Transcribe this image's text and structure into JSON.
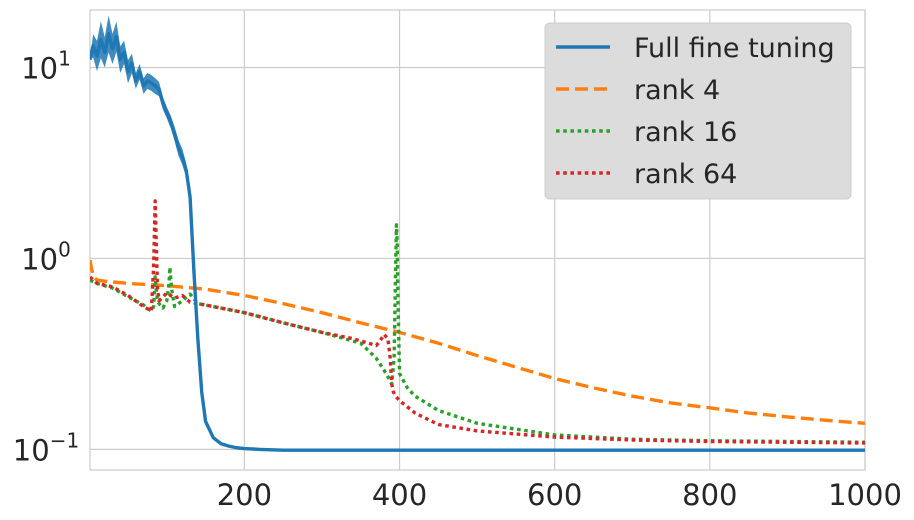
{
  "chart_data": {
    "type": "line",
    "title": "",
    "xlabel": "",
    "ylabel": "",
    "xlim": [
      1,
      1000
    ],
    "ylim": [
      0.078,
      20
    ],
    "yscale": "log",
    "grid": true,
    "legend_position": "top-right",
    "x_ticks": [
      {
        "value": 200,
        "label": "200"
      },
      {
        "value": 400,
        "label": "400"
      },
      {
        "value": 600,
        "label": "600"
      },
      {
        "value": 800,
        "label": "800"
      },
      {
        "value": 1000,
        "label": "1000"
      }
    ],
    "y_ticks": [
      {
        "value": 10,
        "base": "10",
        "exp": "1"
      },
      {
        "value": 1,
        "base": "10",
        "exp": "0"
      },
      {
        "value": 0.1,
        "base": "10",
        "exp": "−1"
      }
    ],
    "series": [
      {
        "name": "Full fine tuning",
        "color": "#1f77b4",
        "style": "solid",
        "x": [
          1,
          5,
          10,
          15,
          20,
          25,
          30,
          35,
          40,
          45,
          50,
          55,
          60,
          65,
          70,
          75,
          80,
          85,
          90,
          95,
          100,
          105,
          110,
          115,
          120,
          125,
          130,
          135,
          140,
          145,
          150,
          160,
          170,
          180,
          190,
          200,
          220,
          250,
          300,
          400,
          500,
          600,
          800,
          1000
        ],
        "y": [
          11,
          13,
          11.5,
          14,
          12,
          15,
          12.5,
          14.5,
          11,
          12,
          9.5,
          10.5,
          8.5,
          9.5,
          8,
          8.5,
          8.3,
          8,
          7.7,
          6.5,
          5.8,
          5.2,
          4.5,
          3.8,
          3.4,
          2.9,
          2.1,
          0.85,
          0.38,
          0.2,
          0.14,
          0.115,
          0.107,
          0.104,
          0.102,
          0.101,
          0.1,
          0.099,
          0.099,
          0.099,
          0.099,
          0.099,
          0.099,
          0.099
        ],
        "band_y": [
          0,
          3,
          4,
          5,
          4,
          5,
          4,
          4,
          3.5,
          3,
          3,
          2.5,
          2,
          2,
          2,
          2,
          2,
          2,
          1.8,
          1.6,
          1.4,
          1.6,
          1.8,
          2,
          2,
          1.8,
          1.4,
          0,
          0,
          0,
          0,
          0,
          0,
          0,
          0,
          0,
          0,
          0,
          0,
          0,
          0,
          0,
          0,
          0
        ]
      },
      {
        "name": "rank 4",
        "color": "#ff7f0e",
        "style": "dashed",
        "x": [
          1,
          3,
          6,
          10,
          20,
          50,
          100,
          150,
          200,
          250,
          300,
          350,
          400,
          450,
          500,
          550,
          600,
          650,
          700,
          750,
          800,
          850,
          900,
          950,
          1000
        ],
        "y": [
          0.98,
          0.88,
          0.8,
          0.77,
          0.76,
          0.74,
          0.72,
          0.69,
          0.64,
          0.58,
          0.52,
          0.46,
          0.41,
          0.36,
          0.31,
          0.27,
          0.235,
          0.21,
          0.19,
          0.175,
          0.165,
          0.155,
          0.148,
          0.142,
          0.137
        ]
      },
      {
        "name": "rank 16",
        "color": "#2ca02c",
        "style": "dotted",
        "x": [
          1,
          10,
          30,
          50,
          70,
          80,
          83,
          85,
          86,
          88,
          90,
          95,
          100,
          103,
          104,
          106,
          110,
          120,
          130,
          140,
          150,
          200,
          250,
          300,
          350,
          370,
          380,
          385,
          390,
          393,
          395,
          396,
          397,
          398,
          400,
          410,
          420,
          450,
          500,
          600,
          700,
          800,
          900,
          1000
        ],
        "y": [
          0.77,
          0.74,
          0.7,
          0.63,
          0.57,
          0.53,
          0.56,
          0.8,
          0.72,
          0.6,
          0.58,
          0.55,
          0.6,
          0.75,
          0.9,
          0.7,
          0.56,
          0.6,
          0.65,
          0.58,
          0.57,
          0.52,
          0.46,
          0.41,
          0.36,
          0.3,
          0.26,
          0.24,
          0.22,
          0.3,
          0.9,
          1.5,
          1.2,
          0.6,
          0.25,
          0.21,
          0.19,
          0.16,
          0.137,
          0.119,
          0.113,
          0.111,
          0.11,
          0.109
        ]
      },
      {
        "name": "rank 64",
        "color": "#d62728",
        "style": "dotted",
        "x": [
          1,
          10,
          30,
          50,
          70,
          80,
          83,
          85,
          86,
          88,
          90,
          100,
          110,
          120,
          130,
          150,
          200,
          250,
          300,
          340,
          360,
          370,
          375,
          380,
          385,
          388,
          390,
          392,
          395,
          400,
          420,
          450,
          500,
          600,
          700,
          800,
          900,
          1000
        ],
        "y": [
          0.8,
          0.74,
          0.71,
          0.64,
          0.56,
          0.53,
          0.9,
          2,
          1.4,
          0.7,
          0.6,
          0.66,
          0.62,
          0.64,
          0.59,
          0.57,
          0.52,
          0.46,
          0.41,
          0.38,
          0.36,
          0.35,
          0.37,
          0.4,
          0.38,
          0.3,
          0.22,
          0.2,
          0.19,
          0.18,
          0.155,
          0.135,
          0.125,
          0.116,
          0.112,
          0.11,
          0.109,
          0.108
        ]
      }
    ]
  }
}
